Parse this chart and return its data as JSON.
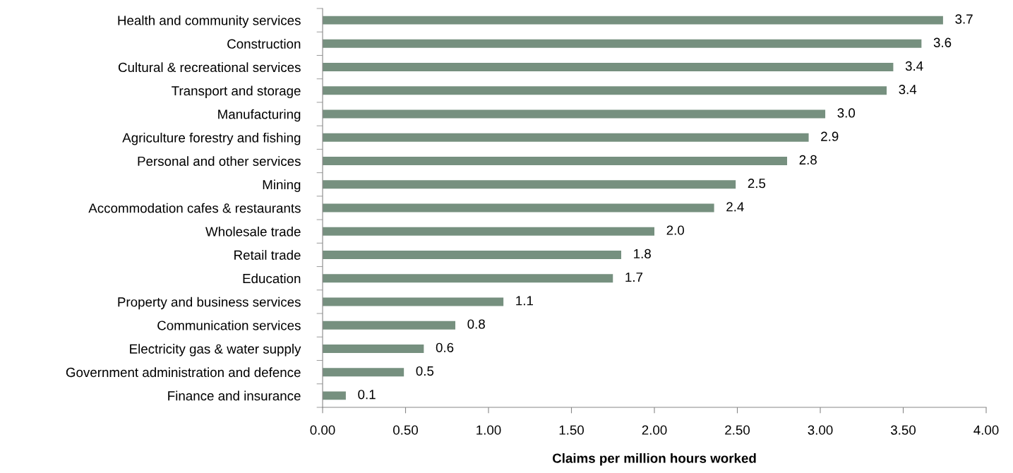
{
  "chart_data": {
    "type": "bar",
    "orientation": "horizontal",
    "xlabel": "Claims per million hours worked",
    "categories": [
      "Health and community services",
      "Construction",
      "Cultural & recreational services",
      "Transport and storage",
      "Manufacturing",
      "Agriculture forestry and fishing",
      "Personal and other services",
      "Mining",
      "Accommodation cafes & restaurants",
      "Wholesale trade",
      "Retail trade",
      "Education",
      "Property and business services",
      "Communication services",
      "Electricity gas & water supply",
      "Government administration and defence",
      "Finance and insurance"
    ],
    "values": [
      3.74,
      3.61,
      3.44,
      3.4,
      3.03,
      2.93,
      2.8,
      2.49,
      2.36,
      2.0,
      1.8,
      1.75,
      1.09,
      0.8,
      0.61,
      0.49,
      0.14
    ],
    "value_labels": [
      "3.7",
      "3.6",
      "3.4",
      "3.4",
      "3.0",
      "2.9",
      "2.8",
      "2.5",
      "2.4",
      "2.0",
      "1.8",
      "1.7",
      "1.1",
      "0.8",
      "0.6",
      "0.5",
      "0.1"
    ],
    "color": "#76907f",
    "xlim": [
      0,
      4
    ],
    "xticks": [
      {
        "value": 0,
        "label": "0.00"
      },
      {
        "value": 0.5,
        "label": "0.50"
      },
      {
        "value": 1,
        "label": "1.00"
      },
      {
        "value": 1.5,
        "label": "1.50"
      },
      {
        "value": 2,
        "label": "2.00"
      },
      {
        "value": 2.5,
        "label": "2.50"
      },
      {
        "value": 3,
        "label": "3.00"
      },
      {
        "value": 3.5,
        "label": "3.50"
      },
      {
        "value": 4,
        "label": "4.00"
      }
    ],
    "grid": false,
    "legend": false
  }
}
